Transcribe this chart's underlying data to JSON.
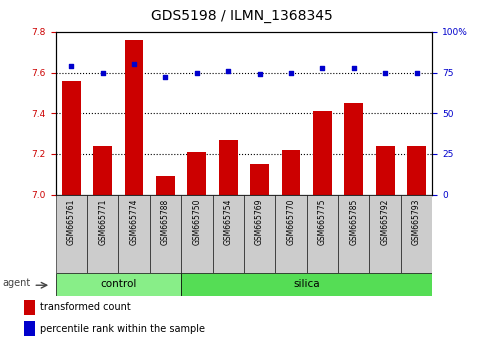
{
  "title": "GDS5198 / ILMN_1368345",
  "samples": [
    "GSM665761",
    "GSM665771",
    "GSM665774",
    "GSM665788",
    "GSM665750",
    "GSM665754",
    "GSM665769",
    "GSM665770",
    "GSM665775",
    "GSM665785",
    "GSM665792",
    "GSM665793"
  ],
  "n_control": 4,
  "n_silica": 8,
  "transformed_count": [
    7.56,
    7.24,
    7.76,
    7.09,
    7.21,
    7.27,
    7.15,
    7.22,
    7.41,
    7.45,
    7.24,
    7.24
  ],
  "percentile_rank": [
    79,
    75,
    80,
    72,
    75,
    76,
    74,
    75,
    78,
    78,
    75,
    75
  ],
  "ylim_left": [
    7.0,
    7.8
  ],
  "ylim_right": [
    0,
    100
  ],
  "yticks_left": [
    7.0,
    7.2,
    7.4,
    7.6,
    7.8
  ],
  "yticks_right": [
    0,
    25,
    50,
    75,
    100
  ],
  "bar_color": "#cc0000",
  "dot_color": "#0000cc",
  "control_color": "#88ee88",
  "silica_color": "#55dd55",
  "plot_bg_color": "#ffffff",
  "tick_area_color": "#cccccc",
  "grid_color": "#000000",
  "title_fontsize": 10,
  "tick_fontsize": 6.5,
  "bar_width": 0.6,
  "legend_bar_color": "#cc0000",
  "legend_dot_color": "#0000cc"
}
